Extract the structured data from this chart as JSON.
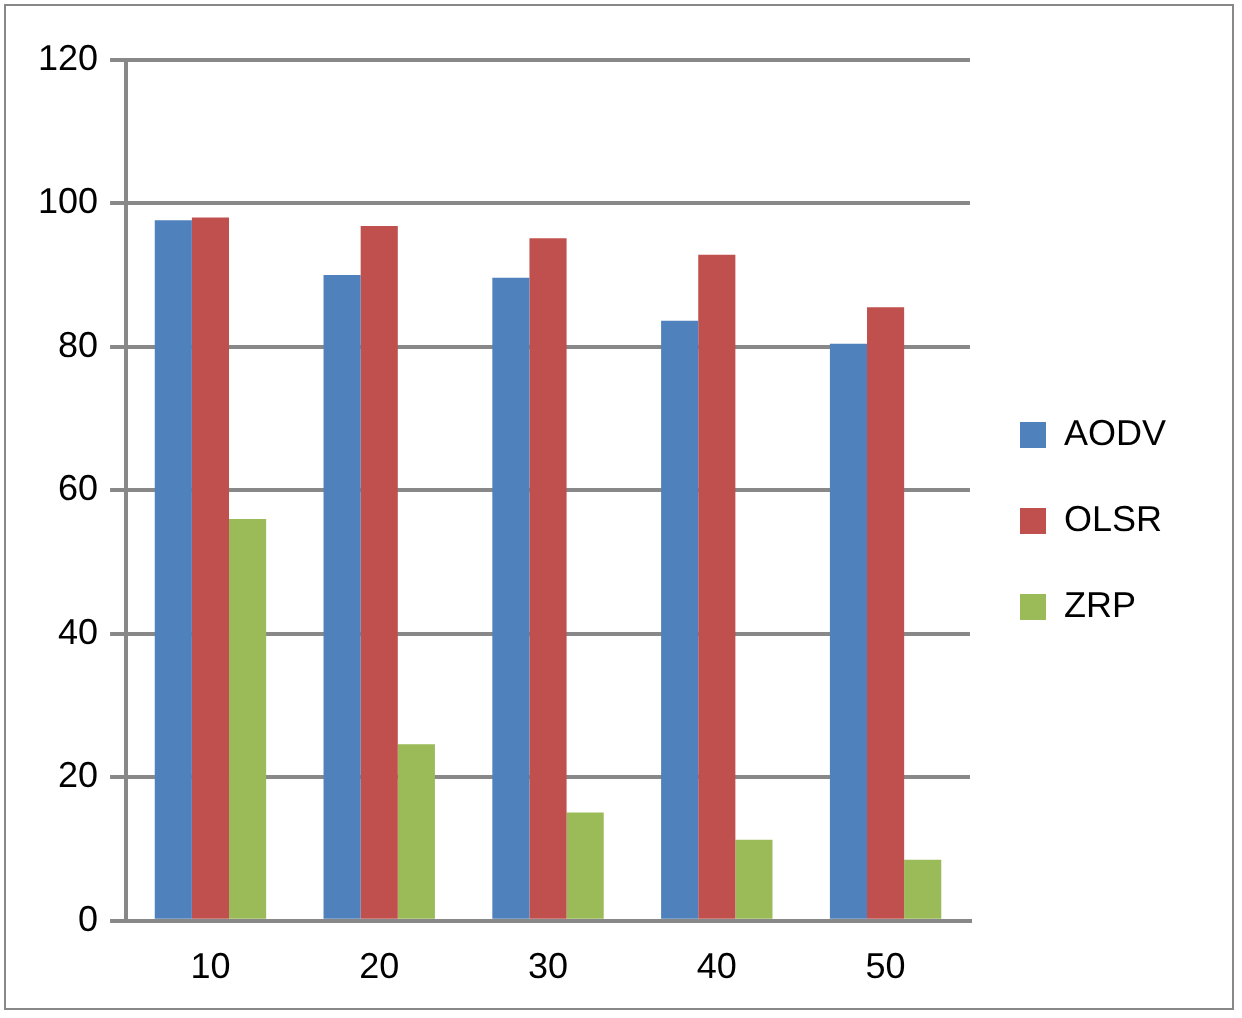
{
  "chart_data": {
    "type": "bar",
    "categories": [
      "10",
      "20",
      "30",
      "40",
      "50"
    ],
    "series": [
      {
        "name": "AODV",
        "color": "#4f81bd",
        "values": [
          97.6,
          90.0,
          89.6,
          83.6,
          80.4
        ]
      },
      {
        "name": "OLSR",
        "color": "#c0504d",
        "values": [
          98.0,
          96.8,
          95.1,
          92.8,
          85.5
        ]
      },
      {
        "name": "ZRP",
        "color": "#9bbb59",
        "values": [
          56.0,
          24.6,
          15.1,
          11.3,
          8.5
        ]
      }
    ],
    "ylim": [
      0,
      120
    ],
    "yticks": [
      0,
      20,
      40,
      60,
      80,
      100,
      120
    ],
    "grid": "y",
    "legend": "right"
  }
}
